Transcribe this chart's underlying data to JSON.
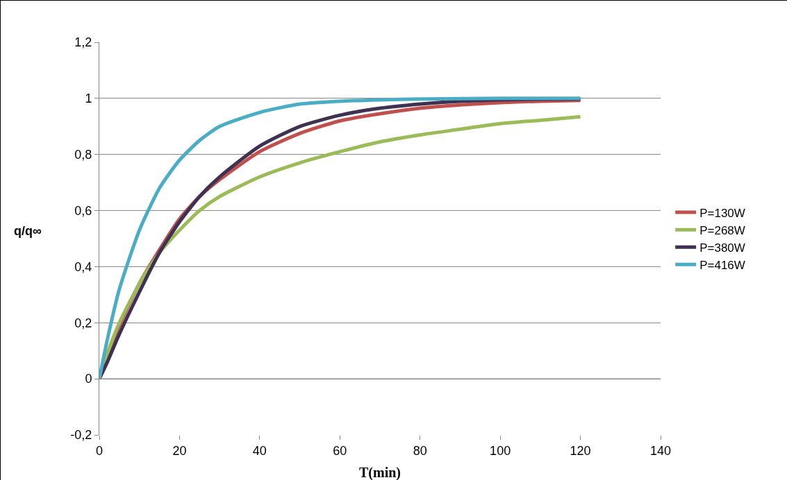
{
  "chart_data": {
    "type": "line",
    "xlabel": "T(min)",
    "ylabel": "q/q∞",
    "x": [
      0,
      2,
      5,
      10,
      15,
      20,
      25,
      30,
      40,
      50,
      60,
      70,
      80,
      90,
      100,
      110,
      120
    ],
    "series": [
      {
        "name": "P=130W",
        "color": "#c0504d",
        "values": [
          0,
          0.08,
          0.19,
          0.34,
          0.46,
          0.57,
          0.65,
          0.71,
          0.81,
          0.875,
          0.92,
          0.945,
          0.965,
          0.977,
          0.985,
          0.99,
          0.993
        ]
      },
      {
        "name": "P=268W",
        "color": "#9bbb59",
        "values": [
          0,
          0.09,
          0.2,
          0.34,
          0.45,
          0.53,
          0.6,
          0.65,
          0.72,
          0.77,
          0.81,
          0.845,
          0.87,
          0.89,
          0.91,
          0.922,
          0.935
        ]
      },
      {
        "name": "P=380W",
        "color": "#3f3151",
        "values": [
          0,
          0.06,
          0.16,
          0.31,
          0.45,
          0.56,
          0.65,
          0.72,
          0.83,
          0.9,
          0.94,
          0.965,
          0.98,
          0.99,
          0.995,
          0.997,
          0.998
        ]
      },
      {
        "name": "P=416W",
        "color": "#4bacc6",
        "values": [
          0,
          0.14,
          0.32,
          0.53,
          0.68,
          0.78,
          0.85,
          0.9,
          0.95,
          0.98,
          0.99,
          0.995,
          0.998,
          0.999,
          1,
          1,
          1
        ]
      }
    ],
    "xlim": [
      0,
      140
    ],
    "xticks": [
      0,
      20,
      40,
      60,
      80,
      100,
      120,
      140
    ],
    "ylim": [
      -0.2,
      1.2
    ],
    "yticks": [
      {
        "value": -0.2,
        "label": "-0,2"
      },
      0,
      {
        "value": 0.2,
        "label": "0,2"
      },
      {
        "value": 0.4,
        "label": "0,4"
      },
      {
        "value": 0.6,
        "label": "0,6"
      },
      {
        "value": 0.8,
        "label": "0,8"
      },
      1,
      {
        "value": 1.2,
        "label": "1,2"
      }
    ],
    "grid": "y",
    "legend": "right",
    "marker": "none",
    "line_style": "solid"
  }
}
